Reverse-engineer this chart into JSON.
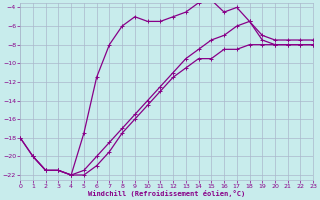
{
  "xlabel": "Windchill (Refroidissement éolien,°C)",
  "background_color": "#c8ecec",
  "grid_color": "#aab8cc",
  "line_color": "#880088",
  "xlim": [
    0,
    23
  ],
  "ylim": [
    -22.5,
    -3.5
  ],
  "xticks": [
    0,
    1,
    2,
    3,
    4,
    5,
    6,
    7,
    8,
    9,
    10,
    11,
    12,
    13,
    14,
    15,
    16,
    17,
    18,
    19,
    20,
    21,
    22,
    23
  ],
  "yticks": [
    -4,
    -6,
    -8,
    -10,
    -12,
    -14,
    -16,
    -18,
    -20,
    -22
  ],
  "line1_x": [
    0,
    1,
    2,
    3,
    4,
    5,
    6,
    7,
    8,
    9,
    10,
    11,
    12,
    13,
    14,
    15,
    16,
    17,
    18,
    19,
    20,
    21,
    22,
    23
  ],
  "line1_y": [
    -18.0,
    -20.0,
    -21.5,
    -21.5,
    -22.0,
    -22.0,
    -21.0,
    -19.5,
    -17.5,
    -16.0,
    -14.5,
    -13.0,
    -11.5,
    -10.5,
    -9.5,
    -9.5,
    -8.5,
    -8.5,
    -8.0,
    -8.0,
    -8.0,
    -8.0,
    -8.0,
    -8.0
  ],
  "line2_x": [
    0,
    1,
    2,
    3,
    4,
    5,
    6,
    7,
    8,
    9,
    10,
    11,
    12,
    13,
    14,
    15,
    16,
    17,
    18,
    19,
    20,
    21,
    22,
    23
  ],
  "line2_y": [
    -18.0,
    -20.0,
    -21.5,
    -21.5,
    -22.0,
    -17.5,
    -11.5,
    -8.0,
    -6.0,
    -5.0,
    -5.5,
    -5.5,
    -5.0,
    -4.5,
    -3.5,
    -3.2,
    -4.5,
    -4.0,
    -5.5,
    -7.0,
    -7.5,
    -7.5,
    -7.5,
    -7.5
  ],
  "line3_x": [
    1,
    2,
    3,
    4,
    5,
    6,
    7,
    8,
    9,
    10,
    11,
    12,
    13,
    14,
    15,
    16,
    17,
    18,
    19,
    20,
    21,
    22,
    23
  ],
  "line3_y": [
    -20.0,
    -21.5,
    -21.5,
    -22.0,
    -21.5,
    -20.0,
    -18.5,
    -17.0,
    -15.5,
    -14.0,
    -12.5,
    -11.0,
    -9.5,
    -8.5,
    -7.5,
    -7.0,
    -6.0,
    -5.5,
    -7.5,
    -8.0,
    -8.0,
    -8.0,
    -8.0
  ]
}
